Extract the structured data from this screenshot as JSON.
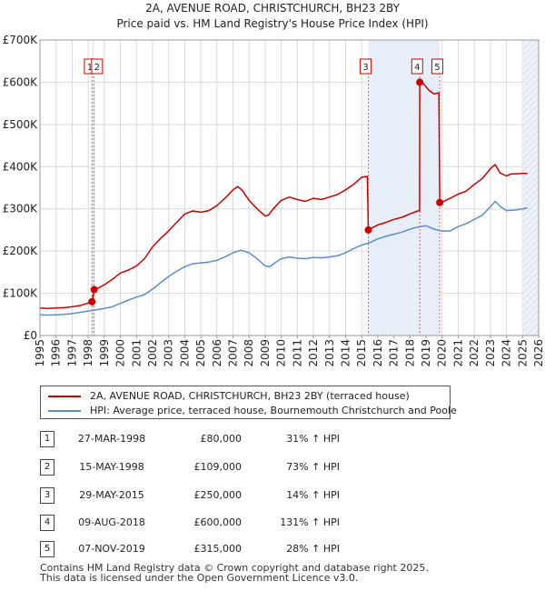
{
  "chart_data": {
    "type": "line",
    "title": "2A, AVENUE ROAD, CHRISTCHURCH, BH23 2BY",
    "subtitle": "Price paid vs. HM Land Registry's House Price Index (HPI)",
    "xlabel": "",
    "ylabel": "",
    "xlim": [
      1995,
      2026
    ],
    "ylim": [
      0,
      700000
    ],
    "x_ticks": [
      "1995",
      "1996",
      "1997",
      "1998",
      "1999",
      "2000",
      "2001",
      "2002",
      "2003",
      "2004",
      "2005",
      "2006",
      "2007",
      "2008",
      "2009",
      "2010",
      "2011",
      "2012",
      "2013",
      "2014",
      "2015",
      "2016",
      "2017",
      "2018",
      "2019",
      "2020",
      "2021",
      "2022",
      "2023",
      "2024",
      "2025",
      "2026"
    ],
    "y_ticks": [
      {
        "value": 0,
        "label": "£0"
      },
      {
        "value": 100000,
        "label": "£100K"
      },
      {
        "value": 200000,
        "label": "£200K"
      },
      {
        "value": 300000,
        "label": "£300K"
      },
      {
        "value": 400000,
        "label": "£400K"
      },
      {
        "value": 500000,
        "label": "£500K"
      },
      {
        "value": 600000,
        "label": "£600K"
      },
      {
        "value": 700000,
        "label": "£700K"
      }
    ],
    "grid": true,
    "shaded_regions": [
      {
        "from": 1998.23,
        "to": 1998.37
      },
      {
        "from": 2015.41,
        "to": 2019.85
      },
      {
        "from": 2025.0,
        "to": 2026.0,
        "hatched": true
      }
    ],
    "series": [
      {
        "name": "2A, AVENUE ROAD, CHRISTCHURCH, BH23 2BY (terraced house)",
        "color": "#cc0000",
        "x": [
          1995.0,
          1995.5,
          1996.0,
          1996.5,
          1997.0,
          1997.5,
          1998.0,
          1998.2,
          1998.23,
          1998.37,
          1998.6,
          1999.0,
          1999.5,
          2000.0,
          2000.5,
          2001.0,
          2001.5,
          2002.0,
          2002.5,
          2003.0,
          2003.5,
          2004.0,
          2004.5,
          2005.0,
          2005.5,
          2006.0,
          2006.5,
          2007.0,
          2007.3,
          2007.6,
          2008.0,
          2008.5,
          2009.0,
          2009.2,
          2009.5,
          2010.0,
          2010.5,
          2011.0,
          2011.5,
          2012.0,
          2012.5,
          2013.0,
          2013.5,
          2014.0,
          2014.5,
          2015.0,
          2015.35,
          2015.41,
          2015.8,
          2016.0,
          2016.5,
          2017.0,
          2017.5,
          2018.0,
          2018.4,
          2018.6,
          2018.61,
          2018.8,
          2019.2,
          2019.5,
          2019.8,
          2019.85,
          2020.0,
          2020.5,
          2021.0,
          2021.5,
          2022.0,
          2022.5,
          2023.0,
          2023.3,
          2023.6,
          2024.0,
          2024.3,
          2024.6,
          2025.0,
          2025.3
        ],
        "values": [
          65000,
          64000,
          65000,
          66000,
          68000,
          71000,
          77000,
          79000,
          80000,
          109000,
          112000,
          120000,
          133000,
          148000,
          155000,
          165000,
          182000,
          210000,
          230000,
          248000,
          268000,
          288000,
          295000,
          292000,
          296000,
          308000,
          325000,
          345000,
          353000,
          343000,
          320000,
          300000,
          283000,
          285000,
          300000,
          320000,
          328000,
          322000,
          318000,
          325000,
          322000,
          328000,
          334000,
          345000,
          358000,
          375000,
          377000,
          250000,
          258000,
          262000,
          268000,
          275000,
          280000,
          288000,
          294000,
          296000,
          600000,
          598000,
          580000,
          572000,
          575000,
          315000,
          316000,
          325000,
          335000,
          342000,
          358000,
          372000,
          395000,
          405000,
          385000,
          378000,
          383000,
          383000,
          384000,
          384000
        ]
      },
      {
        "name": "HPI: Average price, terraced house, Bournemouth Christchurch and Poole",
        "color": "#5b8ec9",
        "x": [
          1995.0,
          1995.5,
          1996.0,
          1996.5,
          1997.0,
          1997.5,
          1998.0,
          1998.5,
          1999.0,
          1999.5,
          2000.0,
          2000.5,
          2001.0,
          2001.5,
          2002.0,
          2002.5,
          2003.0,
          2003.5,
          2004.0,
          2004.5,
          2005.0,
          2005.5,
          2006.0,
          2006.5,
          2007.0,
          2007.5,
          2008.0,
          2008.5,
          2009.0,
          2009.3,
          2009.6,
          2010.0,
          2010.5,
          2011.0,
          2011.5,
          2012.0,
          2012.5,
          2013.0,
          2013.5,
          2014.0,
          2014.5,
          2015.0,
          2015.5,
          2016.0,
          2016.5,
          2017.0,
          2017.5,
          2018.0,
          2018.5,
          2019.0,
          2019.5,
          2020.0,
          2020.5,
          2021.0,
          2021.5,
          2022.0,
          2022.5,
          2023.0,
          2023.3,
          2023.6,
          2024.0,
          2024.5,
          2025.0,
          2025.3
        ],
        "values": [
          49000,
          48500,
          49000,
          50000,
          52000,
          55000,
          58000,
          61000,
          64000,
          68000,
          76000,
          84000,
          91000,
          97000,
          110000,
          125000,
          140000,
          152000,
          163000,
          170000,
          172000,
          174000,
          178000,
          186000,
          196000,
          202000,
          196000,
          182000,
          165000,
          163000,
          172000,
          182000,
          186000,
          183000,
          182000,
          185000,
          184000,
          186000,
          189000,
          196000,
          206000,
          214000,
          220000,
          229000,
          235000,
          240000,
          245000,
          252000,
          257000,
          260000,
          252000,
          247000,
          248000,
          258000,
          265000,
          275000,
          285000,
          305000,
          318000,
          306000,
          296000,
          297000,
          300000,
          302000
        ]
      }
    ],
    "markers": [
      {
        "id": "1",
        "x": 1998.23,
        "value": 80000,
        "label_x": 1998.1
      },
      {
        "id": "2",
        "x": 1998.37,
        "value": 109000,
        "label_x": 1998.55
      },
      {
        "id": "3",
        "x": 2015.41,
        "value": 250000,
        "label_x": 2015.25
      },
      {
        "id": "4",
        "x": 2018.61,
        "value": 600000,
        "label_x": 2018.45
      },
      {
        "id": "5",
        "x": 2019.85,
        "value": 315000,
        "label_x": 2019.7
      }
    ]
  },
  "legend": [
    {
      "label": "2A, AVENUE ROAD, CHRISTCHURCH, BH23 2BY (terraced house)",
      "color": "#cc0000"
    },
    {
      "label": "HPI: Average price, terraced house, Bournemouth Christchurch and Poole",
      "color": "#5b8ec9"
    }
  ],
  "transactions": [
    {
      "id": "1",
      "date": "27-MAR-1998",
      "price": "£80,000",
      "hpi": "31% ↑ HPI"
    },
    {
      "id": "2",
      "date": "15-MAY-1998",
      "price": "£109,000",
      "hpi": "73% ↑ HPI"
    },
    {
      "id": "3",
      "date": "29-MAY-2015",
      "price": "£250,000",
      "hpi": "14% ↑ HPI"
    },
    {
      "id": "4",
      "date": "09-AUG-2018",
      "price": "£600,000",
      "hpi": "131% ↑ HPI"
    },
    {
      "id": "5",
      "date": "07-NOV-2019",
      "price": "£315,000",
      "hpi": "28% ↑ HPI"
    }
  ],
  "footer": {
    "line1": "Contains HM Land Registry data © Crown copyright and database right 2025.",
    "line2": "This data is licensed under the Open Government Licence v3.0."
  }
}
